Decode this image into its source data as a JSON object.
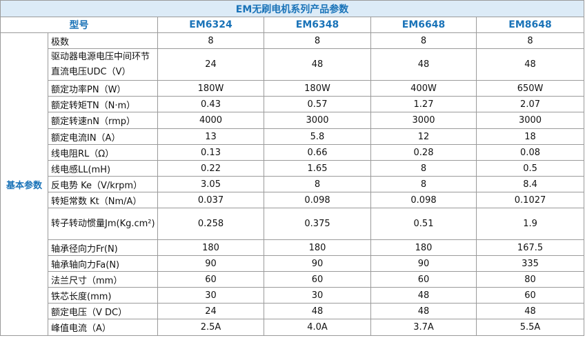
{
  "title": "EM无刷电机系列产品参数",
  "header": {
    "model_label": "型号",
    "models": [
      "EM6324",
      "EM6348",
      "EM6648",
      "EM8648"
    ]
  },
  "category": "基本参数",
  "rows": [
    {
      "param": "极数",
      "values": [
        "8",
        "8",
        "8",
        "8"
      ]
    },
    {
      "param": "驱动器电源电压中间环节直流电压UDC（V）",
      "values": [
        "24",
        "48",
        "48",
        "48"
      ]
    },
    {
      "param": "额定功率PN（W）",
      "values": [
        "180W",
        "180W",
        "400W",
        "650W"
      ]
    },
    {
      "param": "额定转矩TN（N·m）",
      "values": [
        "0.43",
        "0.57",
        "1.27",
        "2.07"
      ]
    },
    {
      "param": "额定转速nN（rmp）",
      "values": [
        "4000",
        "3000",
        "3000",
        "3000"
      ]
    },
    {
      "param": "额定电流IN（A）",
      "values": [
        "13",
        "5.8",
        "12",
        "18"
      ]
    },
    {
      "param": "线电阻RL（Ω）",
      "values": [
        "0.13",
        "0.66",
        "0.28",
        "0.08"
      ]
    },
    {
      "param": "线电感LL(mH)",
      "values": [
        "0.22",
        "1.65",
        "8",
        "0.5"
      ]
    },
    {
      "param": "反电势 Ke（V/krpm）",
      "values": [
        "3.05",
        "8",
        "8",
        "8.4"
      ]
    },
    {
      "param": "转矩常数 Kt（Nm/A）",
      "values": [
        "0.037",
        "0.098",
        "0.098",
        "0.1027"
      ]
    },
    {
      "param": "转子转动惯量Jm(Kg.cm²)",
      "values": [
        "0.258",
        "0.375",
        "0.51",
        "1.9"
      ]
    },
    {
      "param": "轴承径向力Fr(N)",
      "values": [
        "180",
        "180",
        "180",
        "167.5"
      ]
    },
    {
      "param": "轴承轴向力Fa(N)",
      "values": [
        "90",
        "90",
        "90",
        "335"
      ]
    },
    {
      "param": "法兰尺寸（mm）",
      "values": [
        "60",
        "60",
        "60",
        "80"
      ]
    },
    {
      "param": "铁芯长度(mm)",
      "values": [
        "30",
        "30",
        "48",
        "60"
      ]
    },
    {
      "param": "额定电压（V DC）",
      "values": [
        "24",
        "48",
        "48",
        "48"
      ]
    },
    {
      "param": "峰值电流（A）",
      "values": [
        "2.5A",
        "4.0A",
        "3.7A",
        "5.5A"
      ]
    }
  ]
}
